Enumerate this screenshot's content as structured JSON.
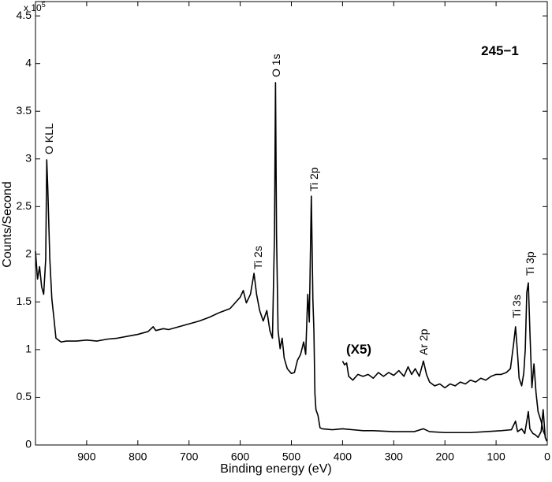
{
  "chart_data": {
    "type": "line",
    "xlabel": "Binding energy (eV)",
    "ylabel": "Counts/Second",
    "y_multiplier": "x 10",
    "y_multiplier_exponent": "5",
    "sample_label": "245−1",
    "scale_label": "(X5)",
    "annotations": [
      "O KLL",
      "O 1s",
      "Ti 2p",
      "Ti 2s",
      "Ti 3s",
      "Ti 3p",
      "Ar 2p"
    ],
    "xlim": [
      1000,
      0
    ],
    "ylim": [
      0,
      4.65
    ],
    "xticks": [
      900,
      800,
      700,
      600,
      500,
      400,
      300,
      200,
      100,
      0
    ],
    "yticks": [
      0,
      0.5,
      1,
      1.5,
      2,
      2.5,
      3,
      3.5,
      4,
      4.5
    ],
    "series": [
      {
        "color": "#000000",
        "x": [
          1000,
          996,
          992,
          988,
          984,
          980,
          978,
          976,
          972,
          968,
          964,
          960,
          955,
          950,
          940,
          920,
          900,
          880,
          860,
          840,
          820,
          800,
          780,
          770,
          765,
          750,
          740,
          720,
          700,
          680,
          660,
          640,
          620,
          610,
          600,
          594,
          588,
          580,
          573,
          568,
          562,
          555,
          548,
          542,
          537,
          533,
          531,
          529,
          526,
          522,
          518,
          514,
          508,
          500,
          494,
          488,
          482,
          476,
          472,
          468,
          465,
          461,
          458,
          456,
          454,
          452,
          448,
          444,
          440,
          420,
          400,
          380,
          360,
          340,
          300,
          260,
          242,
          230,
          200,
          150,
          120,
          90,
          70,
          62,
          58,
          50,
          44,
          37,
          34,
          28,
          24,
          18,
          12,
          8,
          4,
          1
        ],
        "values": [
          2.03,
          1.74,
          1.87,
          1.66,
          1.58,
          1.95,
          2.99,
          2.7,
          1.95,
          1.53,
          1.33,
          1.12,
          1.1,
          1.08,
          1.09,
          1.09,
          1.1,
          1.09,
          1.11,
          1.12,
          1.14,
          1.16,
          1.19,
          1.24,
          1.2,
          1.22,
          1.21,
          1.24,
          1.27,
          1.3,
          1.34,
          1.39,
          1.43,
          1.49,
          1.55,
          1.62,
          1.49,
          1.58,
          1.8,
          1.58,
          1.41,
          1.3,
          1.41,
          1.2,
          1.12,
          2.2,
          3.8,
          2.2,
          1.2,
          1.01,
          1.12,
          0.91,
          0.8,
          0.75,
          0.76,
          0.89,
          0.95,
          1.08,
          0.95,
          1.58,
          1.29,
          2.61,
          1.53,
          1.2,
          0.54,
          0.37,
          0.31,
          0.18,
          0.17,
          0.16,
          0.17,
          0.16,
          0.15,
          0.15,
          0.14,
          0.14,
          0.17,
          0.14,
          0.13,
          0.13,
          0.14,
          0.15,
          0.16,
          0.25,
          0.14,
          0.17,
          0.12,
          0.35,
          0.17,
          0.12,
          0.11,
          0.08,
          0.14,
          0.37,
          0.08,
          0.04
        ]
      },
      {
        "color": "#000000",
        "x": [
          400,
          396,
          392,
          388,
          380,
          370,
          360,
          350,
          340,
          330,
          320,
          310,
          300,
          290,
          280,
          272,
          265,
          258,
          250,
          242,
          236,
          230,
          220,
          210,
          200,
          190,
          180,
          170,
          160,
          150,
          140,
          130,
          120,
          110,
          100,
          90,
          80,
          72,
          66,
          62,
          58,
          55,
          50,
          46,
          43,
          40,
          37,
          34,
          30,
          26,
          22,
          18,
          12,
          8,
          4
        ],
        "values": [
          0.88,
          0.84,
          0.86,
          0.72,
          0.68,
          0.74,
          0.72,
          0.74,
          0.7,
          0.76,
          0.72,
          0.76,
          0.73,
          0.78,
          0.72,
          0.82,
          0.74,
          0.8,
          0.72,
          0.88,
          0.74,
          0.66,
          0.62,
          0.64,
          0.6,
          0.64,
          0.62,
          0.66,
          0.64,
          0.68,
          0.66,
          0.7,
          0.68,
          0.72,
          0.74,
          0.74,
          0.76,
          0.8,
          1.05,
          1.24,
          0.95,
          0.7,
          0.62,
          0.75,
          1.0,
          1.6,
          1.7,
          1.2,
          0.6,
          0.85,
          0.55,
          0.35,
          0.25,
          0.15,
          0.1
        ]
      }
    ]
  }
}
